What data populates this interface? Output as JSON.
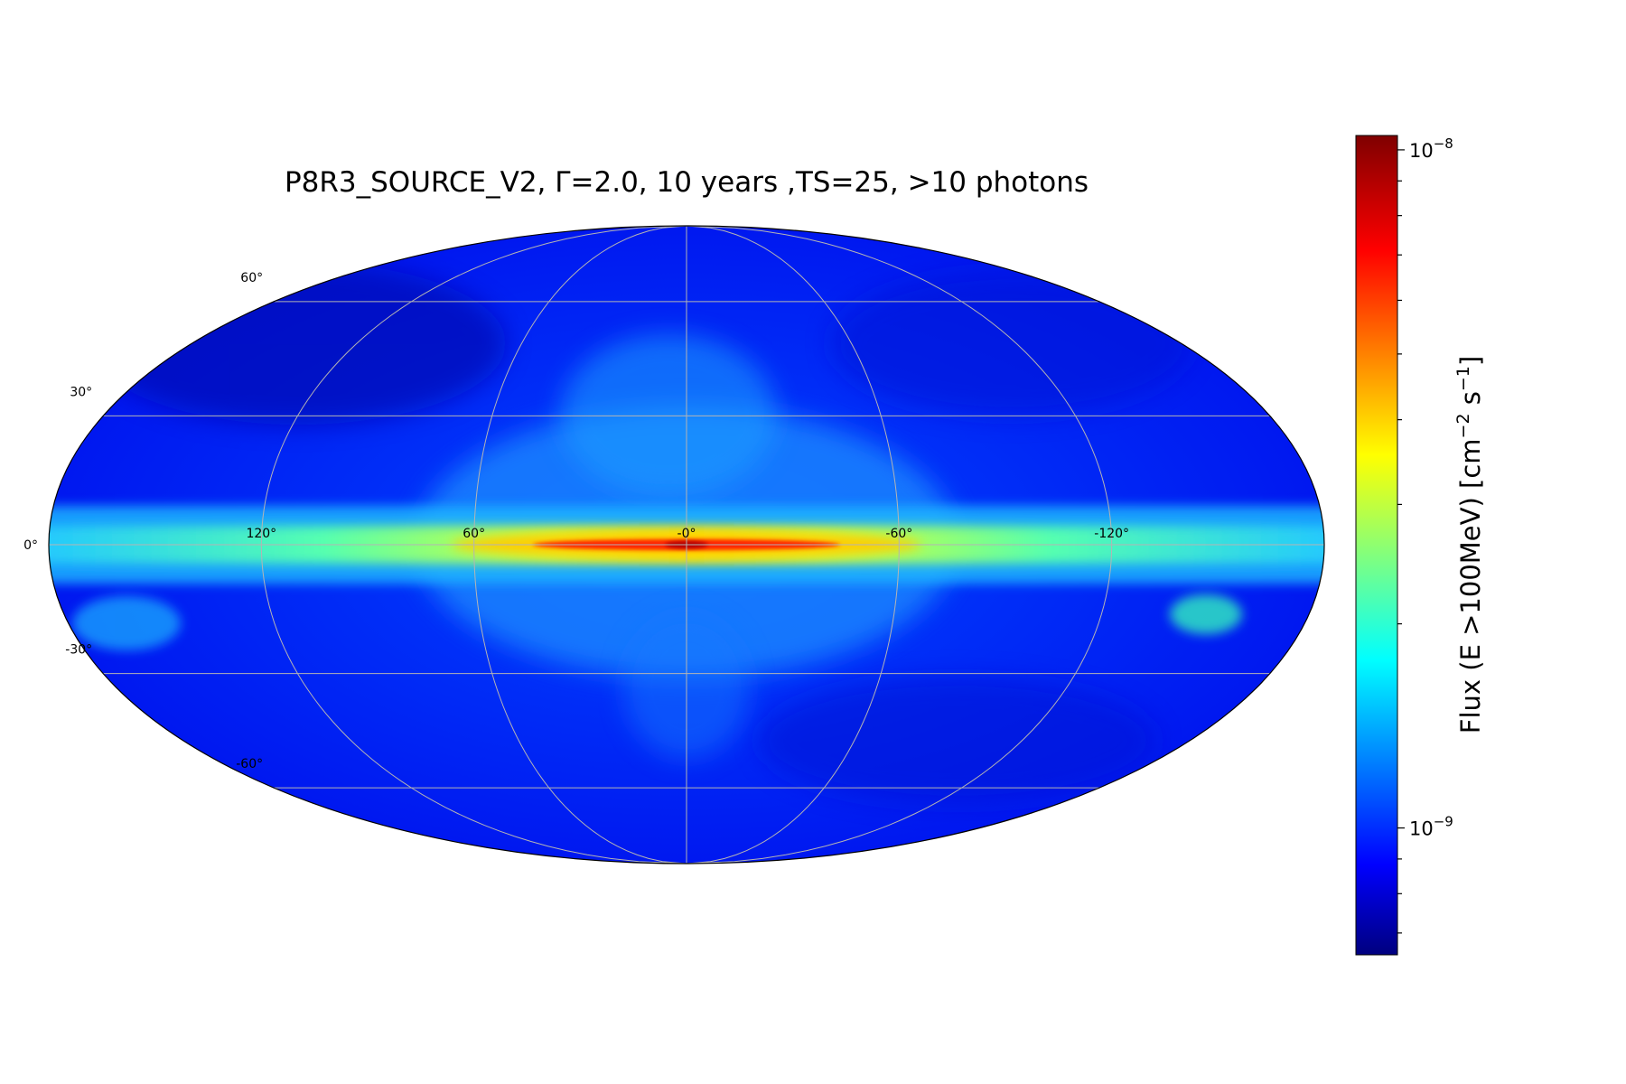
{
  "title": "P8R3_SOURCE_V2, Γ=2.0, 10 years ,TS=25, >10 photons",
  "projection": "mollweide",
  "colormap": "jet",
  "colorscale": "log",
  "grid": true,
  "latitude_labels": [
    {
      "value": 60,
      "text": "60°"
    },
    {
      "value": 30,
      "text": "30°"
    },
    {
      "value": 0,
      "text": "0°"
    },
    {
      "value": -30,
      "text": "-30°"
    },
    {
      "value": -60,
      "text": "-60°"
    }
  ],
  "longitude_labels": [
    {
      "value": 120,
      "text": "120°"
    },
    {
      "value": 60,
      "text": "60°"
    },
    {
      "value": 0,
      "text": "-0°"
    },
    {
      "value": -60,
      "text": "-60°"
    },
    {
      "value": -120,
      "text": "-120°"
    }
  ],
  "colorbar": {
    "label_main": "Flux (E >100MeV) [cm",
    "label_exp1": "−2",
    "label_mid": " s",
    "label_exp2": "−1",
    "label_end": "]",
    "tick_base": "10",
    "ticks": [
      {
        "value": 1e-08,
        "exponent": "−8"
      },
      {
        "value": 1e-09,
        "exponent": "−9"
      }
    ],
    "vmin": 6.5e-10,
    "vmax": 1.05e-08
  },
  "colors": {
    "jet_dark_blue": "#00007f",
    "jet_blue": "#0000ff",
    "jet_cyan": "#00ffff",
    "jet_yellow": "#ffff00",
    "jet_red": "#ff0000",
    "jet_dark_red": "#7f0000",
    "grid": "#b4b4b4"
  }
}
